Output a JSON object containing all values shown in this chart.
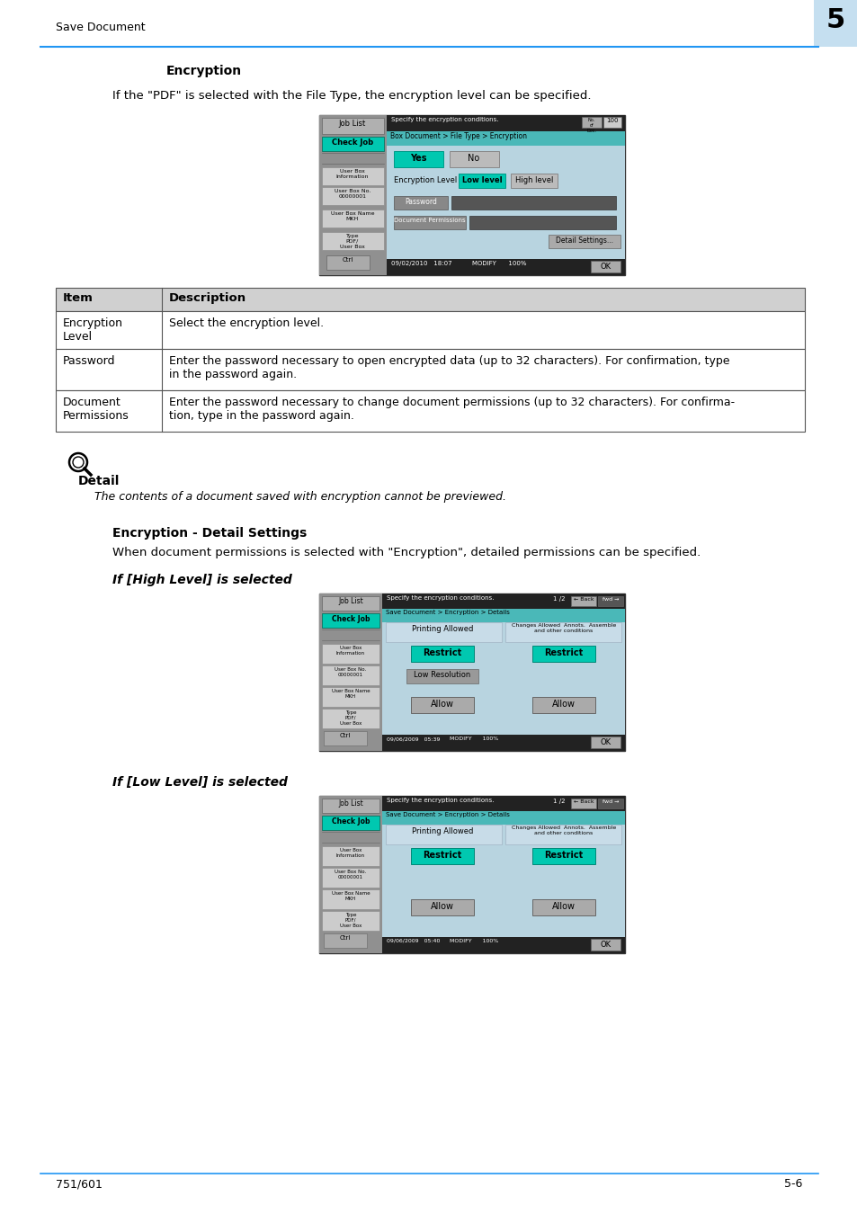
{
  "page_title": "Save Document",
  "chapter_num": "5",
  "footer_left": "751/601",
  "footer_right": "5-6",
  "header_line_color": "#2196f3",
  "bg_color": "#ffffff",
  "section1_title": "Encryption",
  "section1_intro": "If the \"PDF\" is selected with the File Type, the encryption level can be specified.",
  "table_header": [
    "Item",
    "Description"
  ],
  "table_rows": [
    [
      "Encryption\nLevel",
      "Select the encryption level."
    ],
    [
      "Password",
      "Enter the password necessary to open encrypted data (up to 32 characters). For confirmation, type\nin the password again."
    ],
    [
      "Document\nPermissions",
      "Enter the password necessary to change document permissions (up to 32 characters). For confirma-\ntion, type in the password again."
    ]
  ],
  "detail_label": "Detail",
  "detail_text": "The contents of a document saved with encryption cannot be previewed.",
  "section2_title": "Encryption - Detail Settings",
  "section2_intro": "When document permissions is selected with \"Encryption\", detailed permissions can be specified.",
  "subsection1_title": "If [High Level] is selected",
  "subsection2_title": "If [Low Level] is selected",
  "table_header_bg": "#d0d0d0",
  "table_border_color": "#555555",
  "screen_bg": "#b0c8d8",
  "screen_left_panel": "#888888",
  "screen_title_bar": "#222222",
  "teal_btn": "#00c8b0",
  "gray_btn": "#aaaaaa",
  "breadcrumb_color": "#4ab8b8",
  "check_job_btn": "#00c8b0"
}
